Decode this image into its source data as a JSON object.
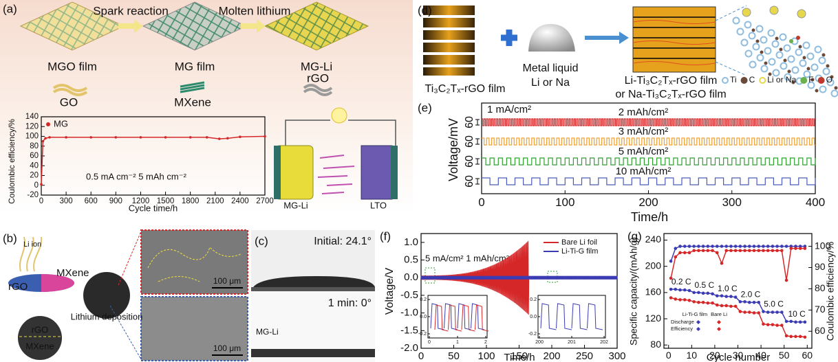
{
  "panel_a": {
    "label": "(a)",
    "steps": [
      "Spark reaction",
      "Molten lithium"
    ],
    "films": [
      "MGO film",
      "MG film",
      "MG-Li"
    ],
    "materials": [
      "GO",
      "MXene",
      "rGO"
    ],
    "cell": [
      "MG-Li",
      "LTO"
    ],
    "chart_data": {
      "type": "line",
      "ylabel": "Coulombic efficiency/%",
      "xlabel": "Cycle time/h",
      "annotation": "0.5 mA cm⁻² 5 mAh cm⁻²",
      "series": [
        {
          "name": "MG",
          "color": "#d62728",
          "x": [
            0,
            20,
            50,
            100,
            300,
            600,
            900,
            1200,
            1500,
            1800,
            2000,
            2150,
            2250,
            2400,
            2700
          ],
          "values": [
            2,
            90,
            96,
            98,
            98,
            98,
            98,
            98,
            98,
            98,
            98,
            95,
            96,
            99,
            100
          ]
        }
      ],
      "xlim": [
        0,
        2700
      ],
      "ylim": [
        -20,
        140
      ],
      "xticks": [
        0,
        300,
        600,
        900,
        1200,
        1500,
        1800,
        2100,
        2400,
        2700
      ],
      "yticks": [
        -20,
        0,
        20,
        40,
        60,
        80,
        100,
        120,
        140
      ]
    }
  },
  "panel_b": {
    "label": "(b)",
    "texts": [
      "Li ion",
      "rGO",
      "MXene",
      "rGO",
      "MXene",
      "Lithium deposition"
    ],
    "scale_bars": [
      "100 μm",
      "100 μm"
    ]
  },
  "panel_c": {
    "label": "(c)",
    "initial": "Initial: 24.1°",
    "after": "1 min: 0°",
    "sample": "MG-Li"
  },
  "panel_d": {
    "label": "(d)",
    "host": "Ti₃C₂Tₓ-rGO film",
    "metal": [
      "Metal liquid",
      "Li or Na"
    ],
    "product": [
      "Li-Ti₃C₂Tₓ-rGO film",
      "or Na-Ti₃C₂Tₓ-rGO film"
    ],
    "atoms": [
      {
        "name": "Ti",
        "color": "#8fbde0"
      },
      {
        "name": "C",
        "color": "#6b4a3a"
      },
      {
        "name": "Li or Na",
        "color": "#e6d84a"
      },
      {
        "name": "F",
        "color": "#6ab04c"
      },
      {
        "name": "O",
        "color": "#c0392b"
      }
    ]
  },
  "panel_e": {
    "label": "(e)",
    "chart_data": {
      "type": "voltage-profile",
      "ylabel": "Voltage/mV",
      "xlabel": "Time/h",
      "current": "1 mA/cm²",
      "xlim": [
        0,
        400
      ],
      "xticks": [
        0,
        100,
        200,
        300,
        400
      ],
      "series": [
        {
          "name": "2 mAh/cm²",
          "color": "#d62728",
          "scale": "60"
        },
        {
          "name": "3 mAh/cm²",
          "color": "#f0a030",
          "scale": "60"
        },
        {
          "name": "5 mAh/cm²",
          "color": "#2ca02c",
          "scale": "60"
        },
        {
          "name": "10 mAh/cm²",
          "color": "#4a5ab8",
          "scale": "60"
        }
      ]
    }
  },
  "panel_f": {
    "label": "(f)",
    "chart_data": {
      "type": "voltage-profile",
      "ylabel": "Voltage/V",
      "xlabel": "Time/h",
      "condition": "5 mA/cm² 1 mAh/cm²",
      "series": [
        {
          "name": "Bare Li foil",
          "color": "#d62728"
        },
        {
          "name": "Li-Ti-G film",
          "color": "#3b3bb3"
        }
      ],
      "xlim": [
        0,
        300
      ],
      "ylim": [
        -2,
        1.25
      ],
      "xticks": [
        0,
        50,
        100,
        150,
        200,
        250,
        300
      ],
      "yticks": [
        {
          "value": -2,
          "label": "-2.0"
        },
        {
          "value": -1.5,
          "label": "-1.5"
        },
        {
          "value": -1,
          "label": "-1.0"
        },
        {
          "value": -0.5,
          "label": "-0.5"
        },
        {
          "value": 0,
          "label": "0.0"
        },
        {
          "value": 0.5,
          "label": "0.5"
        },
        {
          "value": 1,
          "label": "1.0"
        }
      ],
      "insets": [
        {
          "xticks": [
            0,
            1,
            2
          ],
          "yticks": [
            {
              "value": 0.2,
              "label": "0.2"
            },
            {
              "value": 0,
              "label": "0.0"
            },
            {
              "value": -0.2,
              "label": "-0.2"
            }
          ]
        },
        {
          "xticks": [
            200,
            201,
            202
          ],
          "yticks": [
            {
              "value": 0.2,
              "label": "0.2"
            },
            {
              "value": 0,
              "label": "0.0"
            },
            {
              "value": -0.2,
              "label": "-0.2"
            }
          ]
        }
      ]
    }
  },
  "panel_g": {
    "label": "(g)",
    "chart_data": {
      "type": "rate",
      "ylabel": "Specific capacity/(mAh/g)",
      "y2label": "Coulombic efficiency/%",
      "xlabel": "Cycle number",
      "rates": [
        "0.2 C",
        "0.5 C",
        "1.0 C",
        "2.0 C",
        "5.0 C",
        "10 C"
      ],
      "legend": {
        "columns": [
          "Li-Ti-G film",
          "Bare Li"
        ],
        "rows": [
          "Discharge",
          "Efficiency"
        ]
      },
      "x": [
        1,
        3,
        5,
        7,
        9,
        11,
        13,
        15,
        17,
        19,
        21,
        23,
        25,
        27,
        29,
        31,
        33,
        35,
        37,
        39,
        41,
        43,
        45,
        47,
        49,
        51,
        53,
        55,
        57,
        59
      ],
      "series": [
        {
          "color": "#3b3bb3",
          "values": [
            165,
            165,
            164,
            164,
            163,
            160,
            160,
            159,
            159,
            158,
            155,
            155,
            154,
            154,
            153,
            146,
            146,
            145,
            145,
            145,
            131,
            130,
            130,
            130,
            130,
            116,
            116,
            115,
            115,
            115
          ]
        },
        {
          "color": "#d62728",
          "values": [
            152,
            150,
            149,
            149,
            148,
            146,
            145,
            145,
            144,
            144,
            141,
            140,
            140,
            139,
            139,
            131,
            130,
            130,
            129,
            129,
            112,
            111,
            111,
            110,
            110,
            94,
            93,
            93,
            93,
            92
          ]
        },
        {
          "color": "#3b3bb3",
          "axis": "y2",
          "values": [
            93,
            99,
            100,
            100,
            100,
            100,
            100,
            100,
            100,
            100,
            100,
            100,
            100,
            100,
            100,
            100,
            100,
            100,
            100,
            100,
            100,
            100,
            100,
            100,
            100,
            100,
            100,
            100,
            100,
            100
          ]
        },
        {
          "color": "#d62728",
          "axis": "y2",
          "values": [
            85,
            95,
            97,
            97,
            97,
            98,
            98,
            98,
            98,
            98,
            97,
            92,
            98,
            98,
            98,
            98,
            98,
            98,
            98,
            98,
            98,
            98,
            98,
            98,
            98,
            84,
            99,
            99,
            99,
            99
          ]
        }
      ],
      "xlim": [
        -2,
        62
      ],
      "xticks": [
        0,
        10,
        20,
        30,
        40,
        50,
        60
      ],
      "ylim": [
        75,
        250
      ],
      "yticks": [
        80,
        120,
        160,
        200,
        240
      ],
      "y2lim": [
        52,
        106
      ],
      "y2ticks": [
        60,
        70,
        80,
        90,
        100
      ]
    }
  }
}
